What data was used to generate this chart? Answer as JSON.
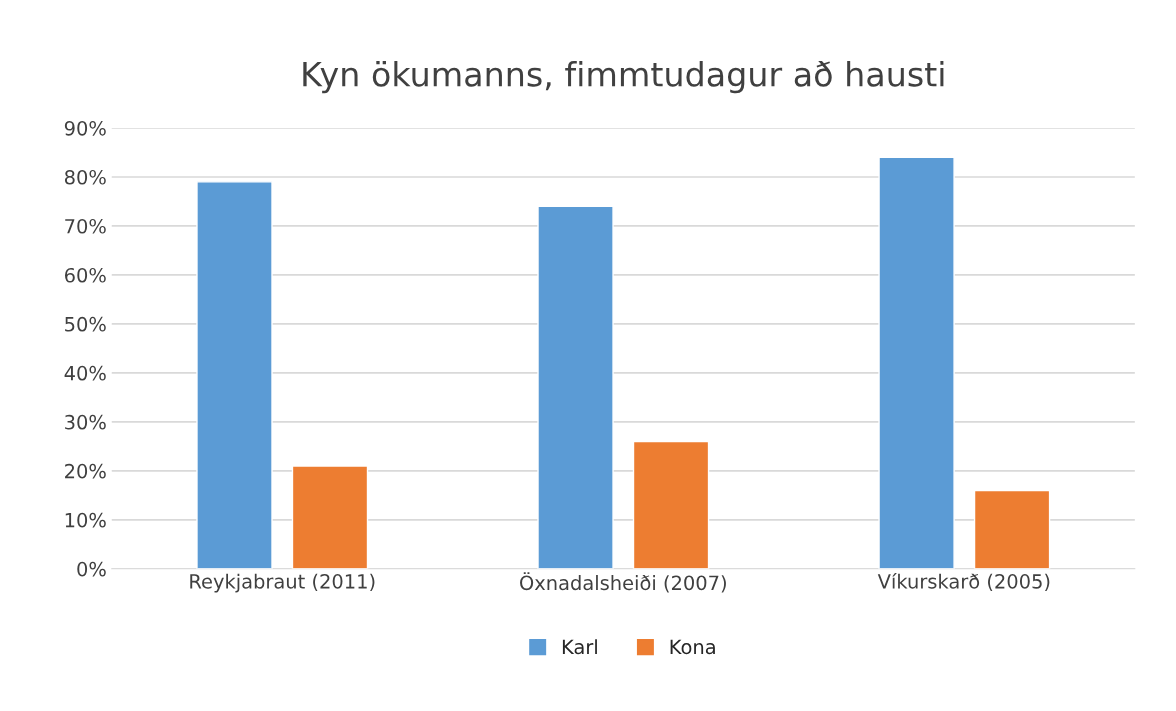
{
  "chart_data": {
    "type": "bar",
    "title": "Kyn ökumanns, fimmtudagur að hausti",
    "categories": [
      "Reykjabraut (2011)",
      "Öxnadalsheiði (2007)",
      "Víkurskarð (2005)"
    ],
    "series": [
      {
        "name": "Karl",
        "color": "#5b9bd5",
        "values": [
          79,
          74,
          84
        ]
      },
      {
        "name": "Kona",
        "color": "#ed7d31",
        "values": [
          21,
          26,
          16
        ]
      }
    ],
    "ylim": [
      0,
      90
    ],
    "yticks": [
      {
        "value": 0,
        "label": "0%"
      },
      {
        "value": 10,
        "label": "10%"
      },
      {
        "value": 20,
        "label": "20%"
      },
      {
        "value": 30,
        "label": "30%"
      },
      {
        "value": 40,
        "label": "40%"
      },
      {
        "value": 50,
        "label": "50%"
      },
      {
        "value": 60,
        "label": "60%"
      },
      {
        "value": 70,
        "label": "70%"
      },
      {
        "value": 80,
        "label": "80%"
      },
      {
        "value": 90,
        "label": "90%"
      }
    ],
    "grid": "y",
    "legend": "bottom"
  }
}
